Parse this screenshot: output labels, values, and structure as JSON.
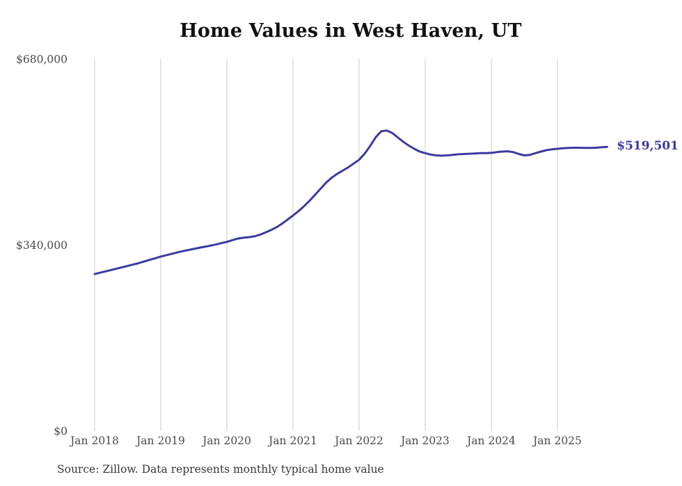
{
  "chart": {
    "title": "Home Values in West Haven, UT",
    "end_label": "$519,501",
    "source": "Source: Zillow. Data represents monthly typical home value"
  },
  "chart_data": {
    "type": "line",
    "title": "Home Values in West Haven, UT",
    "xlabel": "",
    "ylabel": "",
    "ylim": [
      0,
      680000
    ],
    "grid": "vertical-only",
    "legend": "none",
    "line_color": "#3b3a9e",
    "gridline_color": "#cbcbcb",
    "tick_color": "#4a4a4a",
    "end_label": "$519,501",
    "source": "Source: Zillow. Data represents monthly typical home value",
    "x": [
      "2018-01",
      "2018-02",
      "2018-03",
      "2018-04",
      "2018-05",
      "2018-06",
      "2018-07",
      "2018-08",
      "2018-09",
      "2018-10",
      "2018-11",
      "2018-12",
      "2019-01",
      "2019-02",
      "2019-03",
      "2019-04",
      "2019-05",
      "2019-06",
      "2019-07",
      "2019-08",
      "2019-09",
      "2019-10",
      "2019-11",
      "2019-12",
      "2020-01",
      "2020-02",
      "2020-03",
      "2020-04",
      "2020-05",
      "2020-06",
      "2020-07",
      "2020-08",
      "2020-09",
      "2020-10",
      "2020-11",
      "2020-12",
      "2021-01",
      "2021-02",
      "2021-03",
      "2021-04",
      "2021-05",
      "2021-06",
      "2021-07",
      "2021-08",
      "2021-09",
      "2021-10",
      "2021-11",
      "2021-12",
      "2022-01",
      "2022-02",
      "2022-03",
      "2022-04",
      "2022-05",
      "2022-06",
      "2022-07",
      "2022-08",
      "2022-09",
      "2022-10",
      "2022-11",
      "2022-12",
      "2023-01",
      "2023-02",
      "2023-03",
      "2023-04",
      "2023-05",
      "2023-06",
      "2023-07",
      "2023-08",
      "2023-09",
      "2023-10",
      "2023-11",
      "2023-12",
      "2024-01",
      "2024-02",
      "2024-03",
      "2024-04",
      "2024-05",
      "2024-06",
      "2024-07",
      "2024-08",
      "2024-09",
      "2024-10",
      "2024-11",
      "2024-12",
      "2025-01",
      "2025-02",
      "2025-03",
      "2025-04",
      "2025-05",
      "2025-06",
      "2025-07",
      "2025-08",
      "2025-09",
      "2025-10"
    ],
    "values": [
      287000,
      289500,
      292000,
      294500,
      297000,
      299500,
      302000,
      304500,
      307000,
      310000,
      313000,
      316000,
      319000,
      321500,
      324000,
      326500,
      329000,
      331000,
      333000,
      335000,
      337000,
      339000,
      341000,
      343500,
      346000,
      349000,
      352000,
      353500,
      354500,
      356000,
      359000,
      363000,
      367500,
      372500,
      379000,
      386500,
      394000,
      402000,
      411000,
      421000,
      432000,
      443000,
      454000,
      463000,
      470000,
      476000,
      482000,
      489000,
      496000,
      507000,
      521000,
      537000,
      548000,
      549500,
      545000,
      537000,
      529000,
      522000,
      516000,
      511000,
      508000,
      505500,
      504000,
      503500,
      504000,
      505000,
      506000,
      506500,
      507000,
      507500,
      508000,
      508000,
      508500,
      510000,
      511000,
      511500,
      510000,
      506500,
      504000,
      505000,
      508000,
      511000,
      513500,
      515000,
      516000,
      517000,
      517500,
      518000,
      518000,
      517500,
      517500,
      518000,
      519000,
      519501
    ],
    "x_tick_labels": [
      "Jan 2018",
      "Jan 2019",
      "Jan 2020",
      "Jan 2021",
      "Jan 2022",
      "Jan 2023",
      "Jan 2024",
      "Jan 2025"
    ],
    "x_tick_positions": [
      0,
      12,
      24,
      36,
      48,
      60,
      72,
      84
    ],
    "y_ticks": [
      {
        "value": 680000,
        "label": "$680,000"
      },
      {
        "value": 340000,
        "label": "$340,000"
      },
      {
        "value": 0,
        "label": "$0"
      }
    ]
  }
}
